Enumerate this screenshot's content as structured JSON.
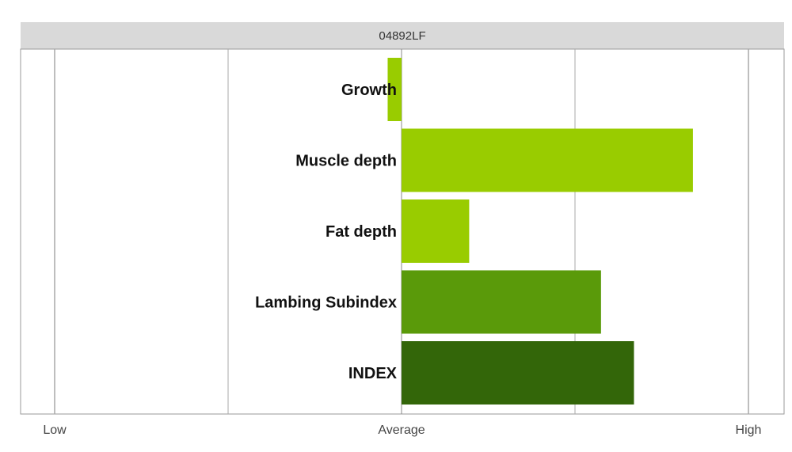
{
  "chart_data": {
    "type": "bar",
    "orientation": "horizontal",
    "title": "04892LF",
    "categories": [
      "Growth",
      "Muscle depth",
      "Fat depth",
      "Lambing Subindex",
      "INDEX"
    ],
    "values": [
      -0.08,
      1.68,
      0.39,
      1.15,
      1.34
    ],
    "colors": [
      "#99cc00",
      "#99cc00",
      "#99cc00",
      "#5a9a0a",
      "#336609"
    ],
    "xlim": [
      -2,
      2
    ],
    "x_ticks": [
      {
        "value": -2,
        "label": "Low"
      },
      {
        "value": 0,
        "label": "Average"
      },
      {
        "value": 2,
        "label": "High"
      }
    ],
    "x_gridlines": [
      -2,
      -1,
      0,
      1,
      2
    ],
    "grid": true,
    "legend": "none"
  }
}
